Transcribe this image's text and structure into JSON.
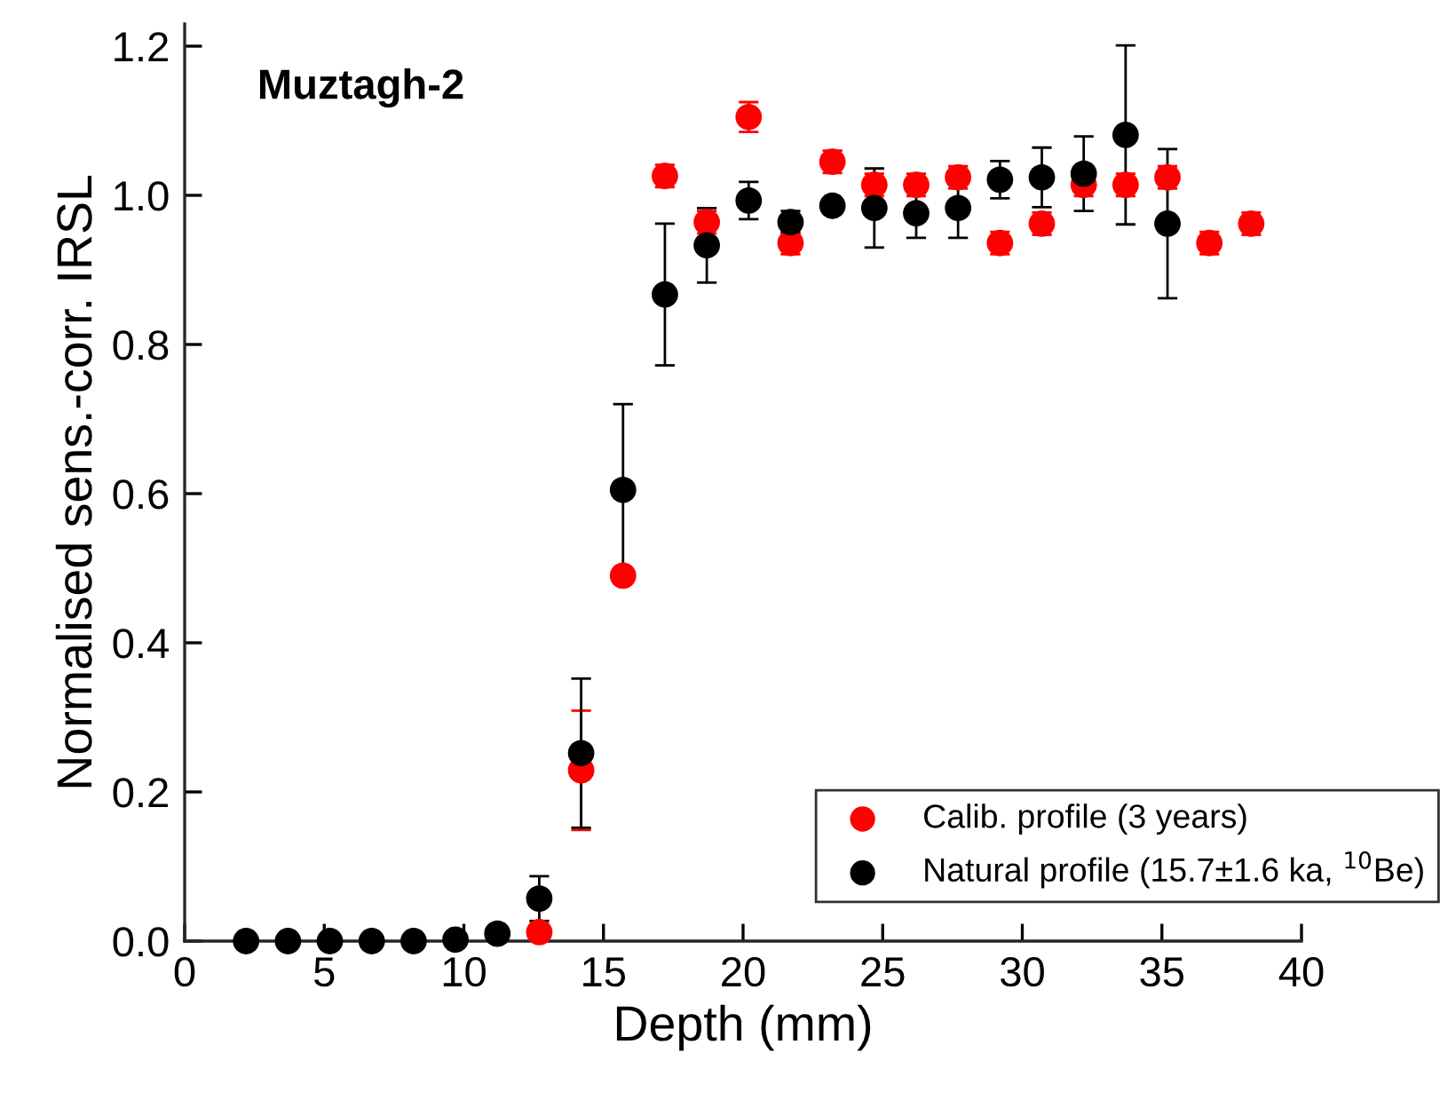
{
  "chart_data": {
    "type": "scatter",
    "xlabel": "Depth (mm)",
    "ylabel": "Normalised sens.-corr. IRSL",
    "annotations": [
      "Muztagh-2"
    ],
    "x": [
      2.2,
      3.7,
      5.2,
      6.7,
      8.2,
      9.7,
      11.2,
      12.7,
      14.2,
      15.7,
      17.2,
      18.7,
      20.2,
      21.7,
      23.2,
      24.7,
      26.2,
      27.7,
      29.2,
      30.7,
      32.2,
      33.7,
      35.2,
      36.7,
      38.2
    ],
    "series": [
      {
        "name": "Calib. profile (3 years)",
        "color": "#ff0000",
        "values": [
          null,
          null,
          null,
          null,
          null,
          null,
          null,
          0.012,
          0.229,
          0.49,
          1.026,
          0.964,
          1.105,
          0.936,
          1.045,
          1.014,
          1.014,
          1.024,
          0.936,
          0.962,
          1.014,
          1.014,
          1.024,
          0.936,
          0.962
        ],
        "errors": [
          null,
          null,
          null,
          null,
          null,
          null,
          null,
          0.01,
          0.08,
          0.01,
          0.015,
          0.015,
          0.02,
          0.015,
          0.015,
          0.015,
          0.015,
          0.015,
          0.015,
          0.015,
          0.015,
          0.015,
          0.015,
          0.015,
          0.015
        ]
      },
      {
        "name": "Natural profile (15.7±1.6 ka, $^{10}$Be)",
        "color": "#000000",
        "values": [
          0,
          0,
          0,
          0,
          0,
          0.002,
          0.01,
          0.057,
          0.252,
          0.605,
          0.867,
          0.933,
          0.993,
          0.964,
          0.986,
          0.983,
          0.976,
          0.983,
          1.021,
          1.024,
          1.029,
          1.081,
          0.962,
          null,
          null
        ],
        "errors": [
          null,
          null,
          null,
          null,
          null,
          null,
          null,
          0.03,
          0.1,
          0.115,
          0.095,
          0.05,
          0.025,
          0.015,
          0.01,
          0.053,
          0.033,
          0.04,
          0.025,
          0.04,
          0.05,
          0.12,
          0.1,
          null,
          null
        ]
      }
    ],
    "xlim": [
      0,
      40
    ],
    "xticks": [
      0,
      5,
      10,
      15,
      20,
      25,
      30,
      35,
      40
    ],
    "ylim": [
      0,
      1.23
    ],
    "yticks": [
      {
        "value": 0,
        "label": "0.0"
      },
      {
        "value": 0.2,
        "label": "0.2"
      },
      {
        "value": 0.4,
        "label": "0.4"
      },
      {
        "value": 0.6,
        "label": "0.6"
      },
      {
        "value": 0.8,
        "label": "0.8"
      },
      {
        "value": 1.0,
        "label": "1.0"
      },
      {
        "value": 1.2,
        "label": "1.2"
      }
    ],
    "marker": "circle",
    "legend": "bottom right",
    "grid": false
  }
}
